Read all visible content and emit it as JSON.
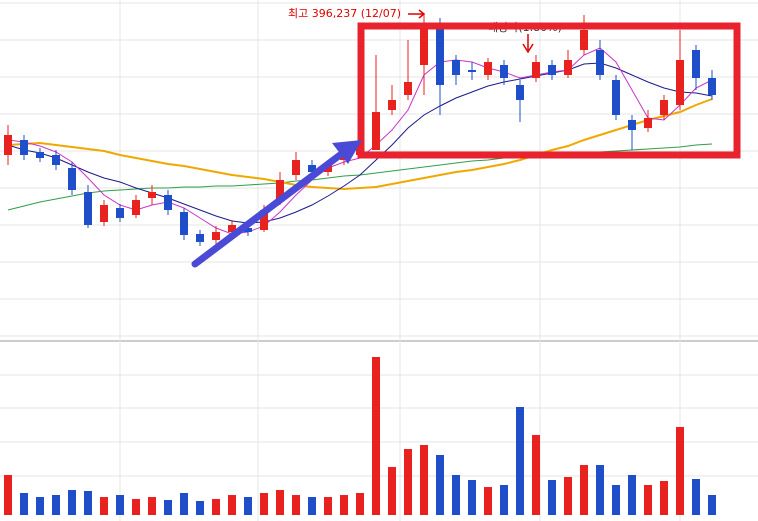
{
  "chart_data": {
    "type": "candlestick",
    "ylim": [
      308200,
      400000
    ],
    "up_color": "#e8231f",
    "down_color": "#1f4fc8",
    "open": [
      358150,
      362200,
      358960,
      358150,
      354640,
      348160,
      340060,
      343840,
      341950,
      346540,
      347350,
      342760,
      336820,
      335200,
      337360,
      338440,
      337900,
      346000,
      352750,
      355450,
      353560,
      356800,
      358150,
      359500,
      370300,
      374350,
      382450,
      393250,
      383800,
      381100,
      379750,
      382450,
      377050,
      378940,
      382450,
      379750,
      386500,
      386500,
      378400,
      367600,
      365440,
      368950,
      371650,
      386500,
      378940
    ],
    "high": [
      366250,
      363550,
      360040,
      359500,
      356260,
      350050,
      346000,
      344920,
      347350,
      350050,
      348700,
      343840,
      337900,
      338980,
      340600,
      340060,
      344650,
      353560,
      358960,
      356800,
      356800,
      359500,
      362200,
      385150,
      377050,
      389200,
      396237,
      395140,
      385150,
      383260,
      384340,
      383800,
      378400,
      385150,
      383800,
      386500,
      395950,
      389200,
      379750,
      368950,
      370300,
      374350,
      391900,
      387850,
      381100
    ],
    "low": [
      355450,
      356800,
      356260,
      354100,
      347350,
      338440,
      338980,
      340060,
      341140,
      344650,
      341950,
      335200,
      333580,
      333850,
      335740,
      336280,
      337360,
      344650,
      351400,
      352480,
      352480,
      355450,
      357340,
      359500,
      368950,
      373000,
      374350,
      368950,
      377050,
      378400,
      378400,
      377050,
      367060,
      377860,
      378400,
      378940,
      385150,
      378400,
      367600,
      359500,
      364360,
      367600,
      370300,
      375700,
      373000
    ],
    "close": [
      363550,
      358150,
      357340,
      355450,
      348700,
      339250,
      344650,
      341140,
      346000,
      348160,
      343300,
      336550,
      334660,
      337360,
      339250,
      337360,
      343300,
      351400,
      356800,
      353560,
      355450,
      358150,
      360850,
      369760,
      373000,
      377860,
      393250,
      377050,
      379750,
      380560,
      383260,
      378940,
      373000,
      383260,
      379750,
      383800,
      391900,
      379750,
      368950,
      364900,
      368140,
      373000,
      383800,
      378940,
      374350
    ],
    "moving_averages": [
      {
        "color": "#2e9e4a",
        "values": [
          343300,
          344380,
          345460,
          346270,
          347080,
          347890,
          348430,
          348700,
          348970,
          349240,
          349240,
          349510,
          349510,
          349780,
          349780,
          350050,
          350320,
          350590,
          351130,
          351400,
          351940,
          352480,
          352750,
          353290,
          353830,
          354370,
          354910,
          355450,
          355990,
          356530,
          356800,
          357340,
          357610,
          357880,
          358150,
          358420,
          358690,
          358960,
          359230,
          359500,
          359770,
          360040,
          360310,
          360850,
          361120
        ]
      },
      {
        "color": "#f0a800",
        "values": [
          360850,
          361120,
          361390,
          360850,
          360310,
          359770,
          359230,
          358150,
          357340,
          356530,
          355720,
          355180,
          354370,
          353560,
          352750,
          352210,
          351670,
          350860,
          350050,
          349510,
          349240,
          348970,
          349240,
          349510,
          350320,
          351130,
          351940,
          352750,
          353560,
          354100,
          354910,
          355720,
          356800,
          358150,
          359500,
          360580,
          362200,
          363550,
          364900,
          366250,
          367600,
          368680,
          369760,
          371650,
          373270
        ]
      },
      {
        "color": "#1a1a8c",
        "values": [
          360850,
          359500,
          358690,
          357340,
          355450,
          353560,
          351940,
          350860,
          349240,
          347890,
          346540,
          344920,
          343300,
          341680,
          340330,
          339790,
          340060,
          341140,
          342760,
          344650,
          347080,
          349780,
          352750,
          356800,
          360850,
          365440,
          368950,
          371380,
          373540,
          375160,
          376780,
          377860,
          378670,
          379480,
          380290,
          381100,
          382720,
          382990,
          381640,
          379750,
          377860,
          376240,
          375160,
          374890,
          374080
        ]
      },
      {
        "color": "#cc33cc",
        "values": [
          362200,
          361660,
          360580,
          358960,
          356260,
          351940,
          347350,
          344650,
          343300,
          344650,
          345460,
          343840,
          341140,
          338440,
          336820,
          337360,
          338980,
          342760,
          347350,
          351400,
          354640,
          356260,
          357340,
          360850,
          364900,
          370300,
          379750,
          383260,
          383800,
          383260,
          381640,
          380560,
          378940,
          379750,
          380560,
          381100,
          385150,
          387040,
          383260,
          375700,
          368140,
          367600,
          371650,
          376240,
          378400
        ]
      }
    ],
    "volume": {
      "ylim": [
        0,
        170
      ],
      "values": [
        40,
        22,
        18,
        20,
        25,
        24,
        18,
        20,
        16,
        18,
        15,
        22,
        14,
        16,
        20,
        18,
        22,
        25,
        20,
        18,
        18,
        20,
        22,
        158,
        48,
        66,
        70,
        60,
        40,
        35,
        28,
        30,
        108,
        80,
        35,
        38,
        50,
        50,
        30,
        40,
        30,
        34,
        88,
        36,
        20
      ]
    },
    "annotations": [
      {
        "text": "최고 396,237 (12/07)",
        "color": "#e00000"
      },
      {
        "text": "배당락(1.80%)",
        "color": "#333333"
      }
    ]
  }
}
